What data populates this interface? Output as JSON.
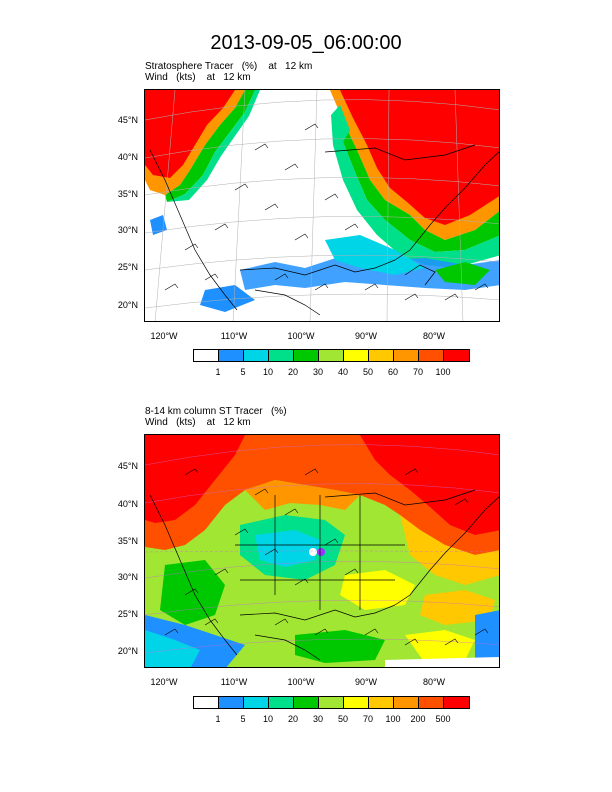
{
  "title": "2013-09-05_06:00:00",
  "panels": [
    {
      "line1": "Stratosphere Tracer   (%)    at   12 km",
      "line2": "Wind   (kts)    at   12 km",
      "lat_labels": [
        "45°N",
        "40°N",
        "35°N",
        "30°N",
        "25°N",
        "20°N"
      ],
      "lon_labels": [
        "120°W",
        "110°W",
        "100°W",
        "90°W",
        "80°W"
      ],
      "colorbar": {
        "labels": [
          "1",
          "5",
          "10",
          "20",
          "30",
          "40",
          "50",
          "60",
          "70",
          "100"
        ],
        "colors": [
          "#ffffff",
          "#1e90ff",
          "#00d5e8",
          "#00e08a",
          "#00c800",
          "#a0e632",
          "#ffff00",
          "#ffc800",
          "#ff9600",
          "#ff5000",
          "#ff0000"
        ]
      }
    },
    {
      "line1": "8-14 km column ST Tracer   (%)",
      "line2": "Wind   (kts)    at   12 km",
      "lat_labels": [
        "45°N",
        "40°N",
        "35°N",
        "30°N",
        "25°N",
        "20°N"
      ],
      "lon_labels": [
        "120°W",
        "110°W",
        "100°W",
        "90°W",
        "80°W"
      ],
      "colorbar": {
        "labels": [
          "1",
          "5",
          "10",
          "20",
          "30",
          "50",
          "70",
          "100",
          "200",
          "500"
        ],
        "colors": [
          "#ffffff",
          "#1e90ff",
          "#00d5e8",
          "#00e08a",
          "#00c800",
          "#a0e632",
          "#ffff00",
          "#ffc800",
          "#ff9600",
          "#ff5000",
          "#ff0000"
        ]
      }
    }
  ]
}
